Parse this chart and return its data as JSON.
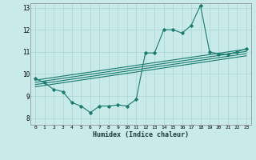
{
  "xlabel": "Humidex (Indice chaleur)",
  "background_color": "#c8eae8",
  "grid_color": "#b0d8d4",
  "line_color": "#1a7a6e",
  "xlim": [
    -0.5,
    23.5
  ],
  "ylim": [
    7.7,
    13.2
  ],
  "yticks": [
    8,
    9,
    10,
    11,
    12,
    13
  ],
  "xticks": [
    0,
    1,
    2,
    3,
    4,
    5,
    6,
    7,
    8,
    9,
    10,
    11,
    12,
    13,
    14,
    15,
    16,
    17,
    18,
    19,
    20,
    21,
    22,
    23
  ],
  "xtick_labels": [
    "0",
    "1",
    "2",
    "3",
    "4",
    "5",
    "6",
    "7",
    "8",
    "9",
    "10",
    "11",
    "12",
    "13",
    "14",
    "15",
    "16",
    "17",
    "18",
    "19",
    "20",
    "21",
    "22",
    "23"
  ],
  "main_line_x": [
    0,
    1,
    2,
    3,
    4,
    5,
    6,
    7,
    8,
    9,
    10,
    11,
    12,
    13,
    14,
    15,
    16,
    17,
    18,
    19,
    20,
    21,
    22,
    23
  ],
  "main_line_y": [
    9.8,
    9.6,
    9.3,
    9.2,
    8.7,
    8.55,
    8.25,
    8.55,
    8.55,
    8.6,
    8.55,
    8.85,
    10.95,
    10.95,
    12.0,
    12.0,
    11.85,
    12.2,
    13.1,
    11.0,
    10.9,
    10.9,
    11.0,
    11.15
  ],
  "reg_lines": [
    {
      "x": [
        0,
        23
      ],
      "y": [
        9.72,
        11.12
      ]
    },
    {
      "x": [
        0,
        23
      ],
      "y": [
        9.62,
        11.02
      ]
    },
    {
      "x": [
        0,
        23
      ],
      "y": [
        9.52,
        10.92
      ]
    },
    {
      "x": [
        0,
        23
      ],
      "y": [
        9.42,
        10.82
      ]
    }
  ]
}
